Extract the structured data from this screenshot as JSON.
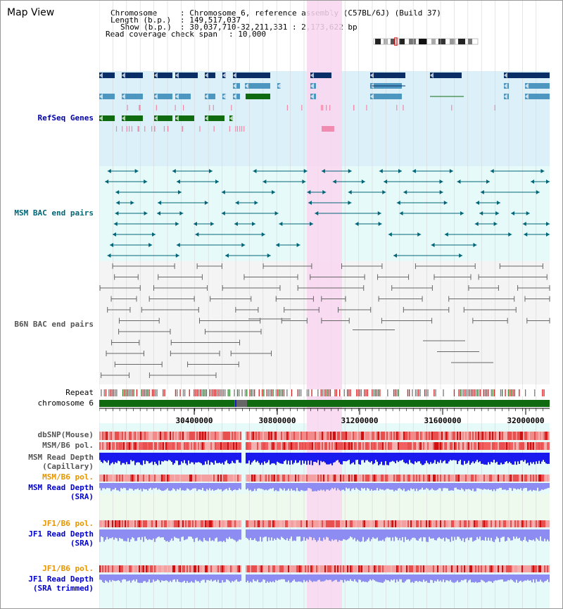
{
  "panel_title": "Map View",
  "header": {
    "chromosome_key": "Chromosome",
    "chromosome_val": ": Chromosome 6, reference assembly (C57BL/6J) (Build 37)",
    "length_key": "Length (b.p.)",
    "length_val": ": 149,517,037",
    "show_key": "Show (b.p.)",
    "show_val": ": 30,037,710-32,211,331 : 2,173,622 bp",
    "coverage_key": "Read coverage check span",
    "coverage_val": ": 10,000"
  },
  "tracks": {
    "refseq": "RefSeq Genes",
    "msm_bac": "MSM BAC end pairs",
    "b6n_bac": "B6N BAC end pairs",
    "repeat": "Repeat",
    "chromosome": "chromosome 6",
    "dbsnp": "dbSNP(Mouse)",
    "msm_b6_pol": "MSM/B6 pol.",
    "msm_depth_cap_1": "MSM Read Depth",
    "msm_depth_cap_2": "(Capillary)",
    "msm_b6_pol_sra": "MSM/B6 pol.",
    "msm_depth_sra_1": "MSM Read Depth",
    "msm_depth_sra_2": "(SRA)",
    "jf1_b6_pol": "JF1/B6 pol.",
    "jf1_depth_1": "JF1 Read Depth",
    "jf1_depth_2": "(SRA)",
    "jf1_b6_pol_2": "JF1/B6 pol.",
    "jf1_trim_1": "JF1 Read Depth",
    "jf1_trim_2": "(SRA trimmed)"
  },
  "axis": {
    "ticks": [
      "30400000",
      "30800000",
      "31200000",
      "31600000",
      "32000000"
    ]
  },
  "colors": {
    "highlight": "#f9d6f0",
    "refseq_bg": "#dcf0fa",
    "msm_bg": "#e6fafa",
    "b6n_bg": "#f4f4f4",
    "navy": "#0a2f66",
    "steel": "#4d96bf",
    "green": "#106b10",
    "msm_label": "#006677",
    "refseq_label": "#0000aa",
    "b6n_label": "#555555",
    "orange_label": "#e69500",
    "depth_blue": "#1a1aee",
    "depth_light": "#8c8cf2"
  }
}
